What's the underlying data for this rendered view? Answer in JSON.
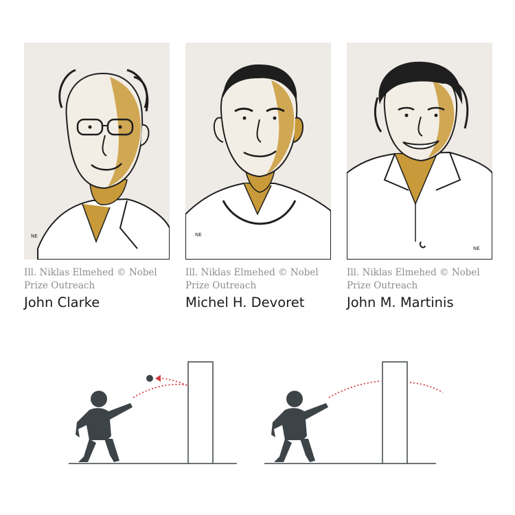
{
  "laureates": [
    {
      "credit": "Ill. Niklas Elmehed © Nobel Prize Outreach",
      "name": "John Clarke",
      "signature": "NE"
    },
    {
      "credit": "Ill. Niklas Elmehed © Nobel Prize Outreach",
      "name": "Michel H. Devoret",
      "signature": "NE"
    },
    {
      "credit": "Ill. Niklas Elmehed © Nobel Prize Outreach",
      "name": "John M. Martinis",
      "signature": "NE"
    }
  ],
  "diagrams": [
    {
      "outcome": "ball-bounces-back",
      "icon": "child-throwing-ball-icon"
    },
    {
      "outcome": "ball-passes-through-wall",
      "icon": "child-throwing-ball-icon"
    }
  ],
  "colors": {
    "portrait_bg": "#eeebe6",
    "gold": "#c99a3a",
    "ink": "#1e1e1e",
    "figure": "#3d4447",
    "trajectory": "#d23c3c"
  }
}
